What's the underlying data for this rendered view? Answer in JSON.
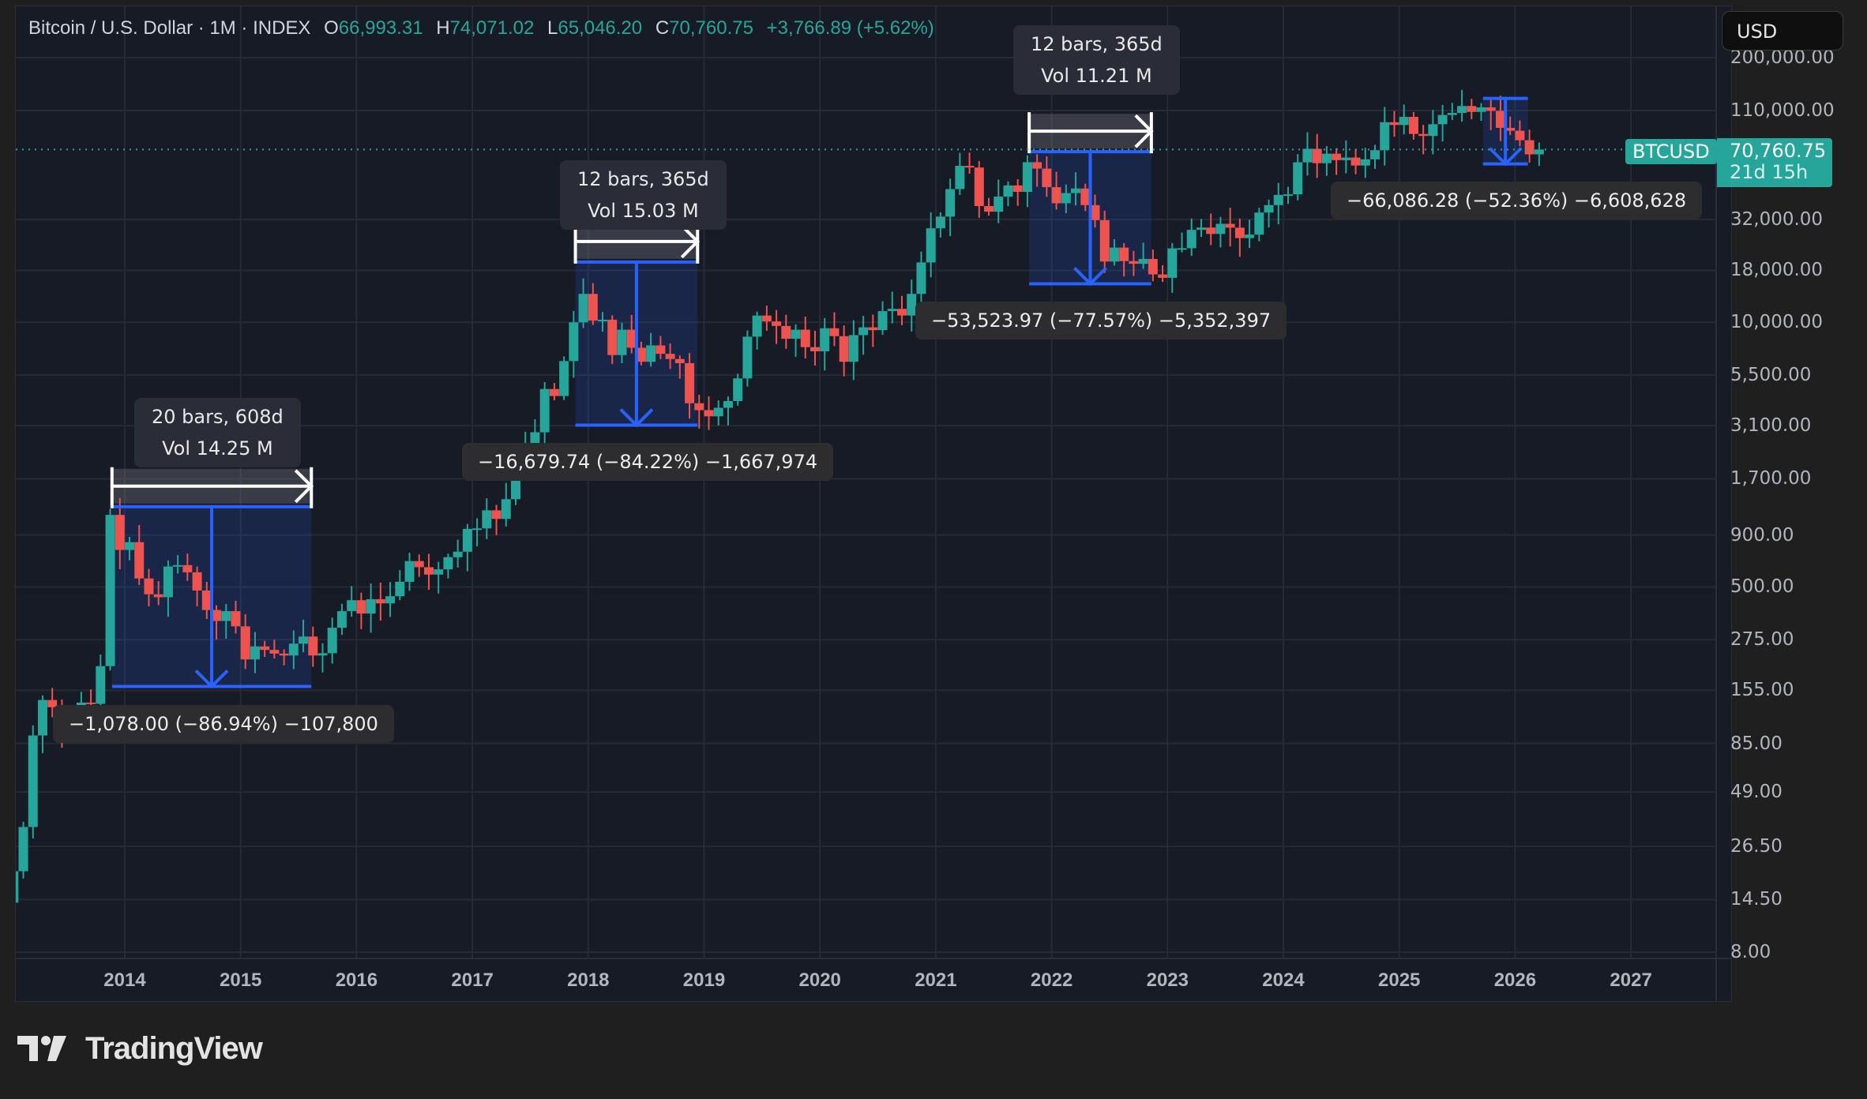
{
  "header": {
    "symbol_desc": "Bitcoin / U.S. Dollar · 1M · INDEX",
    "open_label": "O",
    "open": "66,993.31",
    "high_label": "H",
    "high": "74,071.02",
    "low_label": "L",
    "low": "65,046.20",
    "close_label": "C",
    "close": "70,760.75",
    "change": "+3,766.89 (+5.62%)"
  },
  "currency_button": "USD",
  "last_price": {
    "symbol": "BTCUSD",
    "price": "70,760.75",
    "countdown": "21d 15h",
    "color": "#26a69a"
  },
  "footer": {
    "brand": "TradingView"
  },
  "colors": {
    "up": "#26a69a",
    "down": "#ef5350",
    "measure": "#2962ff",
    "background": "#171b26",
    "grid": "#262a35"
  },
  "measurements": [
    {
      "tip_line1": "20 bars, 608d",
      "tip_line2": "Vol 14.25 M",
      "result": "−1,078.00 (−86.94%) −107,800"
    },
    {
      "tip_line1": "12 bars, 365d",
      "tip_line2": "Vol 15.03 M",
      "result": "−16,679.74 (−84.22%) −1,667,974"
    },
    {
      "tip_line1": "12 bars, 365d",
      "tip_line2": "Vol 11.21 M",
      "result": "−53,523.97 (−77.57%) −5,352,397"
    },
    {
      "result": "−66,086.28 (−52.36%) −6,608,628"
    }
  ],
  "chart_data": {
    "type": "candlestick",
    "title": "Bitcoin / U.S. Dollar · 1M · INDEX",
    "scale": "log",
    "xlabel": "",
    "ylabel": "USD",
    "price_ticks": [
      "200,000.00",
      "110,000.00",
      "32,000.00",
      "18,000.00",
      "10,000.00",
      "5,500.00",
      "3,100.00",
      "1,700.00",
      "900.00",
      "500.00",
      "275.00",
      "155.00",
      "85.00",
      "49.00",
      "26.50",
      "14.50",
      "8.00"
    ],
    "time_ticks": [
      "2014",
      "2015",
      "2016",
      "2017",
      "2018",
      "2019",
      "2020",
      "2021",
      "2022",
      "2023",
      "2024",
      "2025",
      "2026",
      "2027"
    ],
    "ylim": [
      8,
      200000
    ],
    "last": {
      "open": 66993.31,
      "high": 74071.02,
      "low": 65046.2,
      "close": 70760.75,
      "change": 3766.89,
      "change_pct": 5.62
    },
    "drawdowns": [
      {
        "from": "2013-12",
        "to": "2015-08",
        "bars": 20,
        "days": 608,
        "volume_m": 14.25,
        "change": -1078.0,
        "pct": -86.94
      },
      {
        "from": "2017-12",
        "to": "2018-12",
        "bars": 12,
        "days": 365,
        "volume_m": 15.03,
        "change": -16679.74,
        "pct": -84.22
      },
      {
        "from": "2021-11",
        "to": "2022-11",
        "bars": 12,
        "days": 365,
        "volume_m": 11.21,
        "change": -53523.97,
        "pct": -77.57
      },
      {
        "from": "2025-10",
        "to": "2026-02",
        "change": -66086.28,
        "pct": -52.36
      }
    ],
    "monthly_closes_approx": {
      "2013": [
        20,
        33,
        93,
        139,
        128,
        97,
        106,
        135,
        133,
        204,
        1130,
        760
      ],
      "2014": [
        830,
        550,
        460,
        445,
        630,
        640,
        590,
        480,
        385,
        340,
        380,
        320
      ],
      "2015": [
        220,
        255,
        245,
        235,
        230,
        263,
        285,
        230,
        236,
        315,
        380,
        430
      ],
      "2016": [
        370,
        435,
        415,
        450,
        530,
        670,
        625,
        575,
        610,
        700,
        745,
        965
      ],
      "2017": [
        970,
        1190,
        1080,
        1350,
        2300,
        2480,
        2880,
        4700,
        4340,
        6450,
        10000,
        13800
      ],
      "2018": [
        10200,
        10300,
        6900,
        9200,
        7500,
        6400,
        7700,
        7000,
        6600,
        6300,
        4000,
        3700
      ],
      "2019": [
        3450,
        3800,
        4100,
        5300,
        8500,
        10800,
        10100,
        9600,
        8300,
        9200,
        7550,
        7200
      ],
      "2020": [
        9350,
        8550,
        6400,
        8650,
        9450,
        9150,
        11350,
        11650,
        10800,
        13800,
        19700,
        28990
      ],
      "2021": [
        33100,
        45200,
        58800,
        57700,
        37300,
        35000,
        41500,
        47100,
        43800,
        61300,
        57000,
        46200
      ],
      "2022": [
        38500,
        43200,
        45500,
        37700,
        31800,
        19900,
        23300,
        20000,
        19400,
        20500,
        17200,
        16550
      ],
      "2023": [
        23100,
        23150,
        28500,
        29250,
        27200,
        30500,
        29200,
        25950,
        27000,
        34650,
        37700,
        42300
      ],
      "2024": [
        42600,
        61200,
        71300,
        60600,
        67500,
        62700,
        64600,
        59000,
        63300,
        70200,
        96400,
        93400
      ],
      "2025": [
        102400,
        84400,
        82500,
        94200,
        104600,
        107100,
        115800,
        108300,
        114000,
        109600,
        90400,
        87500
      ],
      "2026": [
        78600,
        66990,
        70760
      ]
    }
  }
}
